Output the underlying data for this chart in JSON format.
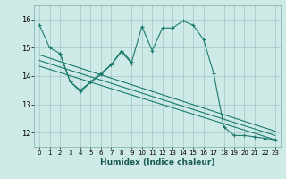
{
  "title": "",
  "xlabel": "Humidex (Indice chaleur)",
  "ylabel": "",
  "bg_color": "#ceeae6",
  "grid_color": "#aacccc",
  "line_color": "#1a7a6e",
  "xlim": [
    -0.5,
    23.5
  ],
  "ylim": [
    11.5,
    16.5
  ],
  "yticks": [
    12,
    13,
    14,
    15,
    16
  ],
  "xticks": [
    0,
    1,
    2,
    3,
    4,
    5,
    6,
    7,
    8,
    9,
    10,
    11,
    12,
    13,
    14,
    15,
    16,
    17,
    18,
    19,
    20,
    21,
    22,
    23
  ],
  "series1_x": [
    0,
    1,
    2,
    3,
    4,
    5,
    6,
    7,
    8,
    9,
    10,
    11,
    12,
    13,
    14,
    15,
    16,
    17,
    18,
    19,
    20,
    21,
    22,
    23
  ],
  "series1_y": [
    15.8,
    15.0,
    14.8,
    13.8,
    13.5,
    13.8,
    14.1,
    14.4,
    14.9,
    14.5,
    15.75,
    14.9,
    15.7,
    15.7,
    15.95,
    15.8,
    15.3,
    14.1,
    12.2,
    11.9,
    11.9,
    11.85,
    11.8,
    11.75
  ],
  "series2_x": [
    2,
    3,
    4,
    5,
    6,
    7,
    8,
    9
  ],
  "series2_y": [
    14.8,
    13.8,
    13.45,
    13.78,
    14.05,
    14.4,
    14.85,
    14.45
  ],
  "trend1_x": [
    0,
    23
  ],
  "trend1_y": [
    14.75,
    12.05
  ],
  "trend2_x": [
    0,
    23
  ],
  "trend2_y": [
    14.55,
    11.9
  ],
  "trend3_x": [
    0,
    23
  ],
  "trend3_y": [
    14.35,
    11.75
  ]
}
